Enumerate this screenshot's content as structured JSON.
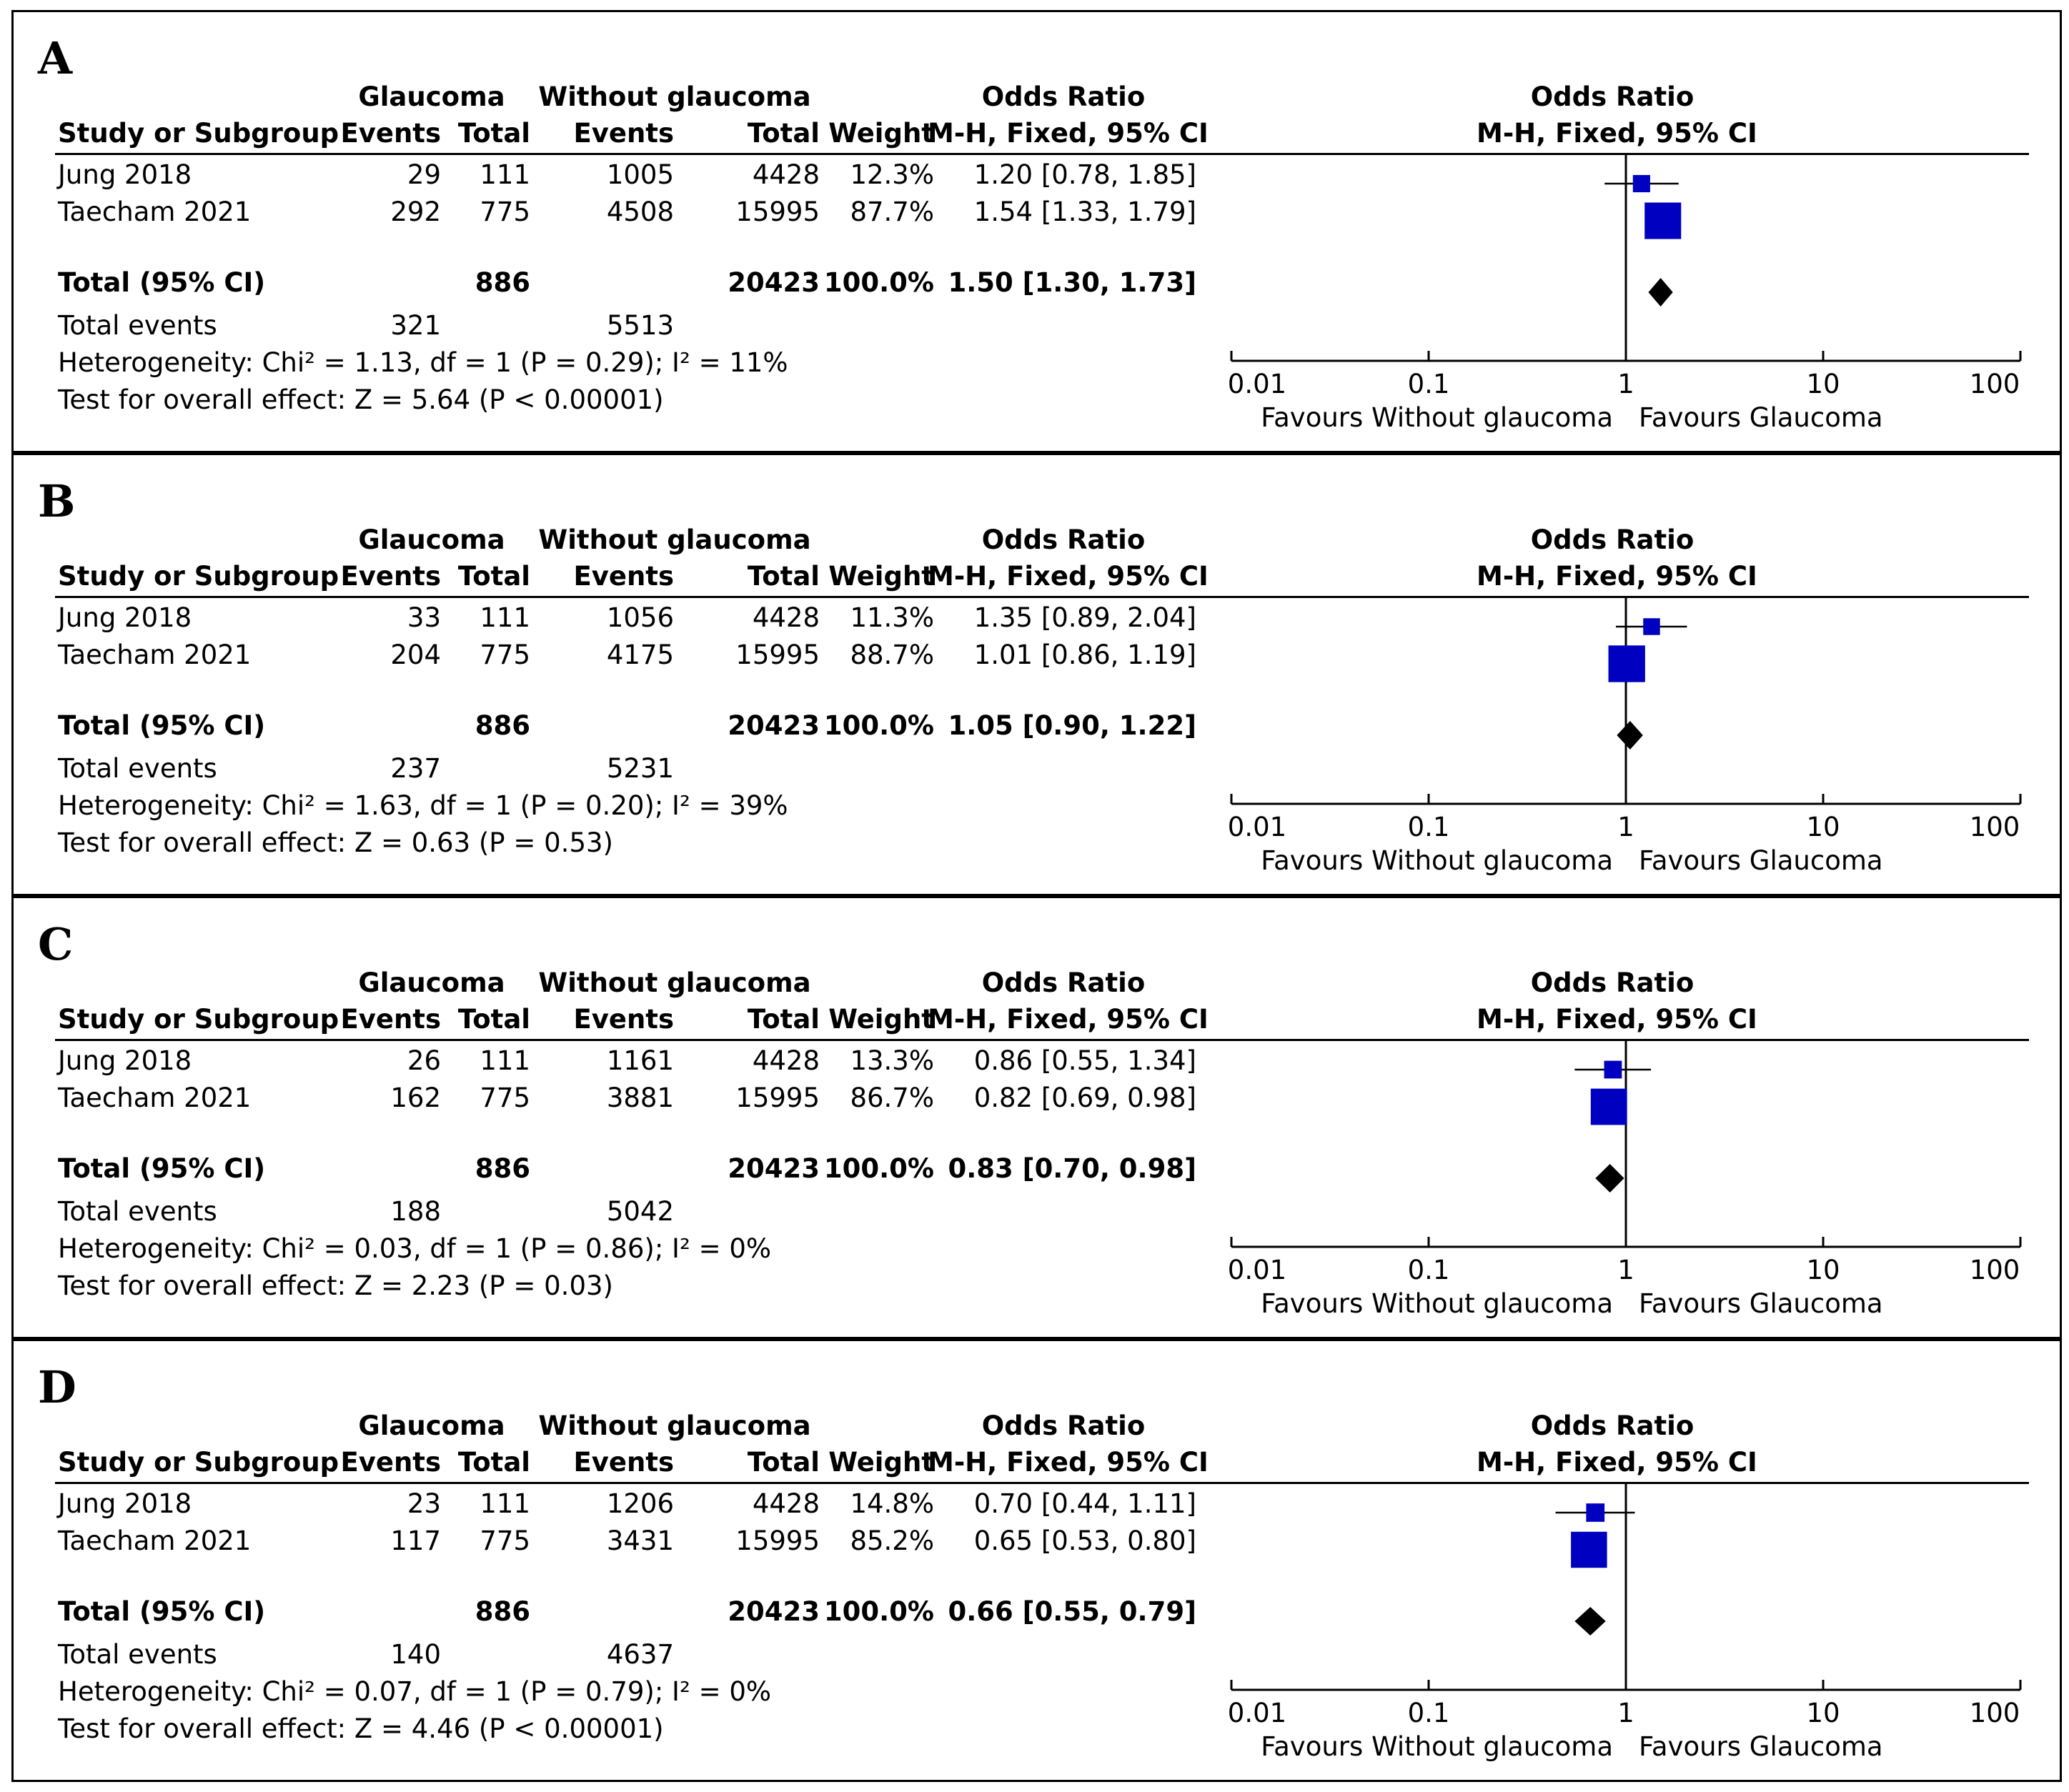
{
  "header": {
    "group1": "Glaucoma",
    "group2": "Without glaucoma",
    "or_col": "Odds Ratio",
    "study_col": "Study or Subgroup",
    "events": "Events",
    "total": "Total",
    "weight": "Weight",
    "method": "M-H, Fixed, 95% CI",
    "plot_title": "Odds Ratio",
    "plot_method": "M-H, Fixed, 95% CI"
  },
  "axis": {
    "ticks": [
      "0.01",
      "0.1",
      "1",
      "10",
      "100"
    ],
    "favours_left": "Favours Without glaucoma",
    "favours_right": "Favours Glaucoma"
  },
  "colors": {
    "study_marker": "#0000c0",
    "diamond": "#000000"
  },
  "panels": [
    {
      "letter": "A",
      "studies": [
        {
          "name": "Jung 2018",
          "e1": "29",
          "n1": "111",
          "e2": "1005",
          "n2": "4428",
          "weight": "12.3%",
          "ci_text": "1.20 [0.78, 1.85]"
        },
        {
          "name": "Taecham 2021",
          "e1": "292",
          "n1": "775",
          "e2": "4508",
          "n2": "15995",
          "weight": "87.7%",
          "ci_text": "1.54 [1.33, 1.79]"
        }
      ],
      "total": {
        "label": "Total (95% CI)",
        "n1": "886",
        "n2": "20423",
        "weight": "100.0%",
        "ci_text": "1.50 [1.30, 1.73]"
      },
      "total_events": {
        "label": "Total events",
        "e1": "321",
        "e2": "5513"
      },
      "heterogeneity": "Heterogeneity: Chi² = 1.13, df = 1 (P = 0.29); I² = 11%",
      "overall": "Test for overall effect: Z = 5.64 (P < 0.00001)"
    },
    {
      "letter": "B",
      "studies": [
        {
          "name": "Jung 2018",
          "e1": "33",
          "n1": "111",
          "e2": "1056",
          "n2": "4428",
          "weight": "11.3%",
          "ci_text": "1.35 [0.89, 2.04]"
        },
        {
          "name": "Taecham 2021",
          "e1": "204",
          "n1": "775",
          "e2": "4175",
          "n2": "15995",
          "weight": "88.7%",
          "ci_text": "1.01 [0.86, 1.19]"
        }
      ],
      "total": {
        "label": "Total (95% CI)",
        "n1": "886",
        "n2": "20423",
        "weight": "100.0%",
        "ci_text": "1.05 [0.90, 1.22]"
      },
      "total_events": {
        "label": "Total events",
        "e1": "237",
        "e2": "5231"
      },
      "heterogeneity": "Heterogeneity: Chi² = 1.63, df = 1 (P = 0.20); I² = 39%",
      "overall": "Test for overall effect: Z = 0.63 (P = 0.53)"
    },
    {
      "letter": "C",
      "studies": [
        {
          "name": "Jung 2018",
          "e1": "26",
          "n1": "111",
          "e2": "1161",
          "n2": "4428",
          "weight": "13.3%",
          "ci_text": "0.86 [0.55, 1.34]"
        },
        {
          "name": "Taecham 2021",
          "e1": "162",
          "n1": "775",
          "e2": "3881",
          "n2": "15995",
          "weight": "86.7%",
          "ci_text": "0.82 [0.69, 0.98]"
        }
      ],
      "total": {
        "label": "Total (95% CI)",
        "n1": "886",
        "n2": "20423",
        "weight": "100.0%",
        "ci_text": "0.83 [0.70, 0.98]"
      },
      "total_events": {
        "label": "Total events",
        "e1": "188",
        "e2": "5042"
      },
      "heterogeneity": "Heterogeneity: Chi² = 0.03, df = 1 (P = 0.86); I² = 0%",
      "overall": "Test for overall effect: Z = 2.23 (P = 0.03)"
    },
    {
      "letter": "D",
      "studies": [
        {
          "name": "Jung 2018",
          "e1": "23",
          "n1": "111",
          "e2": "1206",
          "n2": "4428",
          "weight": "14.8%",
          "ci_text": "0.70 [0.44, 1.11]"
        },
        {
          "name": "Taecham 2021",
          "e1": "117",
          "n1": "775",
          "e2": "3431",
          "n2": "15995",
          "weight": "85.2%",
          "ci_text": "0.65 [0.53, 0.80]"
        }
      ],
      "total": {
        "label": "Total (95% CI)",
        "n1": "886",
        "n2": "20423",
        "weight": "100.0%",
        "ci_text": "0.66 [0.55, 0.79]"
      },
      "total_events": {
        "label": "Total events",
        "e1": "140",
        "e2": "4637"
      },
      "heterogeneity": "Heterogeneity: Chi² = 0.07, df = 1 (P = 0.79); I² = 0%",
      "overall": "Test for overall effect: Z = 4.46 (P < 0.00001)"
    }
  ],
  "chart_data": [
    {
      "type": "forest",
      "panel": "A",
      "xscale": "log",
      "xlim": [
        0.01,
        100
      ],
      "studies": [
        {
          "name": "Jung 2018",
          "or": 1.2,
          "lo": 0.78,
          "hi": 1.85,
          "weight": 12.3
        },
        {
          "name": "Taecham 2021",
          "or": 1.54,
          "lo": 1.33,
          "hi": 1.79,
          "weight": 87.7
        }
      ],
      "pooled": {
        "or": 1.5,
        "lo": 1.3,
        "hi": 1.73
      }
    },
    {
      "type": "forest",
      "panel": "B",
      "xscale": "log",
      "xlim": [
        0.01,
        100
      ],
      "studies": [
        {
          "name": "Jung 2018",
          "or": 1.35,
          "lo": 0.89,
          "hi": 2.04,
          "weight": 11.3
        },
        {
          "name": "Taecham 2021",
          "or": 1.01,
          "lo": 0.86,
          "hi": 1.19,
          "weight": 88.7
        }
      ],
      "pooled": {
        "or": 1.05,
        "lo": 0.9,
        "hi": 1.22
      }
    },
    {
      "type": "forest",
      "panel": "C",
      "xscale": "log",
      "xlim": [
        0.01,
        100
      ],
      "studies": [
        {
          "name": "Jung 2018",
          "or": 0.86,
          "lo": 0.55,
          "hi": 1.34,
          "weight": 13.3
        },
        {
          "name": "Taecham 2021",
          "or": 0.82,
          "lo": 0.69,
          "hi": 0.98,
          "weight": 86.7
        }
      ],
      "pooled": {
        "or": 0.83,
        "lo": 0.7,
        "hi": 0.98
      }
    },
    {
      "type": "forest",
      "panel": "D",
      "xscale": "log",
      "xlim": [
        0.01,
        100
      ],
      "studies": [
        {
          "name": "Jung 2018",
          "or": 0.7,
          "lo": 0.44,
          "hi": 1.11,
          "weight": 14.8
        },
        {
          "name": "Taecham 2021",
          "or": 0.65,
          "lo": 0.53,
          "hi": 0.8,
          "weight": 85.2
        }
      ],
      "pooled": {
        "or": 0.66,
        "lo": 0.55,
        "hi": 0.79
      }
    }
  ]
}
